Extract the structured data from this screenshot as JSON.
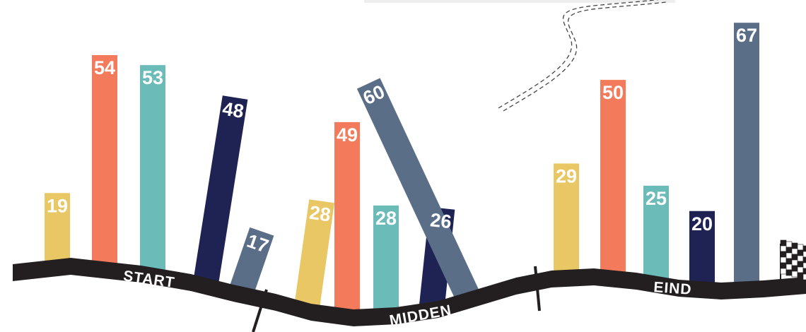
{
  "chart_data": {
    "type": "bar",
    "groups": [
      {
        "label": "START",
        "values": [
          19,
          54,
          53,
          48,
          17
        ]
      },
      {
        "label": "MIDDEN",
        "values": [
          28,
          49,
          28,
          26,
          60
        ]
      },
      {
        "label": "EIND",
        "values": [
          29,
          50,
          25,
          20,
          67
        ]
      }
    ],
    "series_colors": [
      "#E9C764",
      "#F47A5C",
      "#6BBCB8",
      "#1E2354",
      "#5A6E88"
    ],
    "ylim": [
      0,
      70
    ],
    "legend": "none",
    "grid": false,
    "road_color": "#231F20"
  }
}
